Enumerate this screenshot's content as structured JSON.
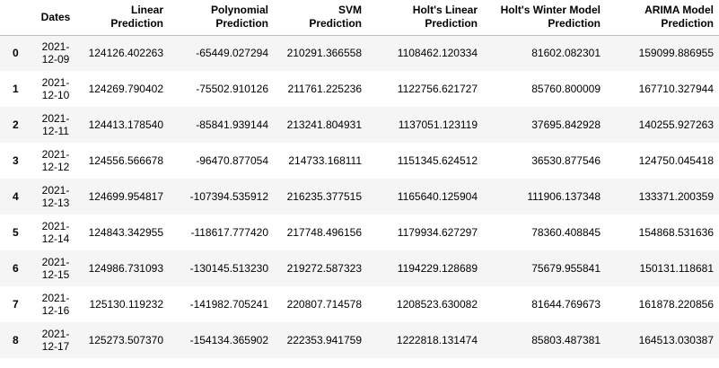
{
  "table": {
    "columns": [
      {
        "key": "index",
        "label": ""
      },
      {
        "key": "dates",
        "label": "Dates"
      },
      {
        "key": "linear",
        "label_line1": "Linear",
        "label_line2": "Prediction"
      },
      {
        "key": "polynomial",
        "label_line1": "Polynomial",
        "label_line2": "Prediction"
      },
      {
        "key": "svm",
        "label_line1": "SVM",
        "label_line2": "Prediction"
      },
      {
        "key": "holts_linear",
        "label_line1": "Holt's Linear",
        "label_line2": "Prediction"
      },
      {
        "key": "holts_winter",
        "label_line1": "Holt's Winter Model",
        "label_line2": "Prediction"
      },
      {
        "key": "arima",
        "label_line1": "ARIMA Model",
        "label_line2": "Prediction"
      }
    ],
    "rows": [
      {
        "index": "0",
        "date_year": "2021-",
        "date_md": "12-09",
        "linear": "124126.402263",
        "polynomial": "-65449.027294",
        "svm": "210291.366558",
        "holts_linear": "1108462.120334",
        "holts_winter": "81602.082301",
        "arima": "159099.886955"
      },
      {
        "index": "1",
        "date_year": "2021-",
        "date_md": "12-10",
        "linear": "124269.790402",
        "polynomial": "-75502.910126",
        "svm": "211761.225236",
        "holts_linear": "1122756.621727",
        "holts_winter": "85760.800009",
        "arima": "167710.327944"
      },
      {
        "index": "2",
        "date_year": "2021-",
        "date_md": "12-11",
        "linear": "124413.178540",
        "polynomial": "-85841.939144",
        "svm": "213241.804931",
        "holts_linear": "1137051.123119",
        "holts_winter": "37695.842928",
        "arima": "140255.927263"
      },
      {
        "index": "3",
        "date_year": "2021-",
        "date_md": "12-12",
        "linear": "124556.566678",
        "polynomial": "-96470.877054",
        "svm": "214733.168111",
        "holts_linear": "1151345.624512",
        "holts_winter": "36530.877546",
        "arima": "124750.045418"
      },
      {
        "index": "4",
        "date_year": "2021-",
        "date_md": "12-13",
        "linear": "124699.954817",
        "polynomial": "-107394.535912",
        "svm": "216235.377515",
        "holts_linear": "1165640.125904",
        "holts_winter": "111906.137348",
        "arima": "133371.200359"
      },
      {
        "index": "5",
        "date_year": "2021-",
        "date_md": "12-14",
        "linear": "124843.342955",
        "polynomial": "-118617.777420",
        "svm": "217748.496156",
        "holts_linear": "1179934.627297",
        "holts_winter": "78360.408845",
        "arima": "154868.531636"
      },
      {
        "index": "6",
        "date_year": "2021-",
        "date_md": "12-15",
        "linear": "124986.731093",
        "polynomial": "-130145.513230",
        "svm": "219272.587323",
        "holts_linear": "1194229.128689",
        "holts_winter": "75679.955841",
        "arima": "150131.118681"
      },
      {
        "index": "7",
        "date_year": "2021-",
        "date_md": "12-16",
        "linear": "125130.119232",
        "polynomial": "-141982.705241",
        "svm": "220807.714578",
        "holts_linear": "1208523.630082",
        "holts_winter": "81644.769673",
        "arima": "161878.220856"
      },
      {
        "index": "8",
        "date_year": "2021-",
        "date_md": "12-17",
        "linear": "125273.507370",
        "polynomial": "-154134.365902",
        "svm": "222353.941759",
        "holts_linear": "1222818.131474",
        "holts_winter": "85803.487381",
        "arima": "164513.030387"
      }
    ]
  },
  "colors": {
    "row_stripe": "#f5f5f5",
    "row_plain": "#ffffff",
    "header_rule": "#bdbdbd",
    "text": "#000000"
  }
}
